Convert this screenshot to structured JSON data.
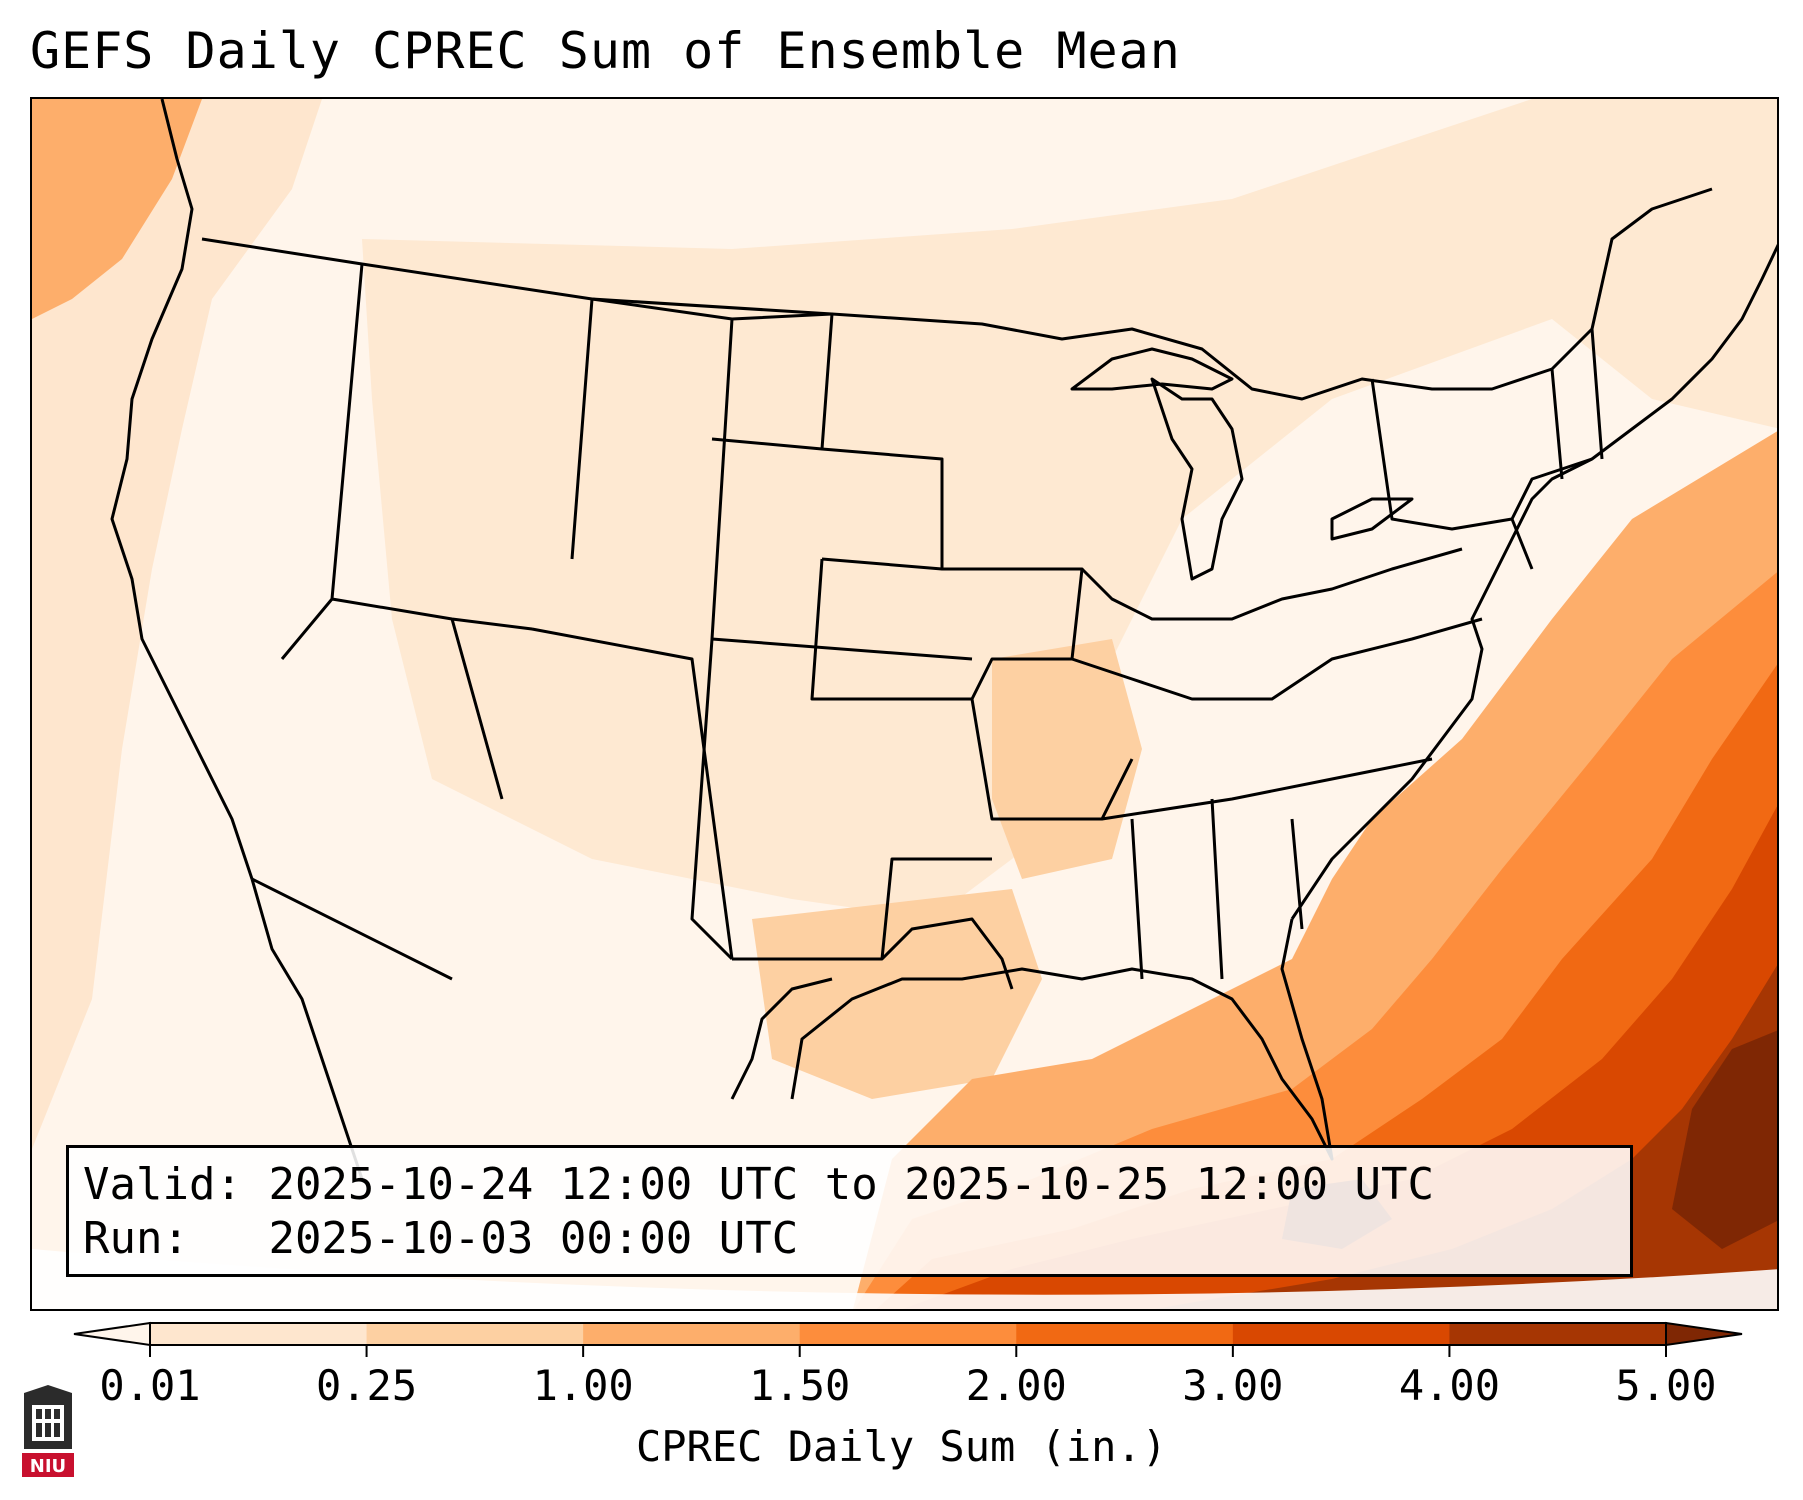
{
  "title": "GEFS Daily CPREC Sum of Ensemble Mean",
  "info": {
    "valid_label": "Valid:",
    "valid_value": "2025-10-24 12:00 UTC to 2025-10-25 12:00 UTC",
    "run_label": "Run:",
    "run_value": "2025-10-03 00:00 UTC"
  },
  "colorbar": {
    "label": "CPREC Daily Sum (in.)",
    "ticks": [
      "0.01",
      "0.25",
      "1.00",
      "1.50",
      "2.00",
      "3.00",
      "4.00",
      "5.00"
    ],
    "colors": [
      "#fff5eb",
      "#fee6ce",
      "#fdd0a2",
      "#fdae6b",
      "#fd8d3c",
      "#f16913",
      "#d94801",
      "#a63603",
      "#7f2704"
    ],
    "extend": "both"
  },
  "logo": {
    "text": "NIU",
    "color": "#c8102e"
  },
  "map_colors": {
    "light": "#fff5eb",
    "pale": "#fee6ce",
    "tan": "#fdd0a2",
    "light_orange": "#fdae6b",
    "orange": "#fd8d3c",
    "dark_orange": "#f16913",
    "deep_orange": "#d94801",
    "brown": "#a63603",
    "dark_brown": "#7f2704"
  }
}
